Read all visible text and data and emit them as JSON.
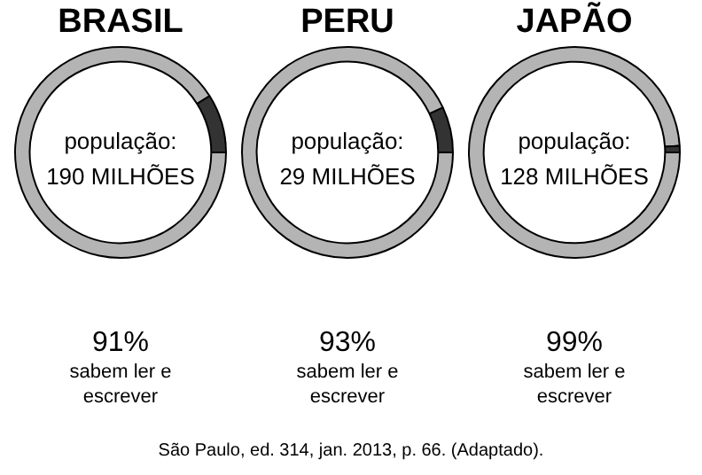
{
  "chart_data": [
    {
      "type": "donut",
      "title": "BRASIL",
      "categories": [
        null,
        null
      ],
      "values": [
        91,
        9
      ],
      "colors": [
        "#b4b4b4",
        "#333333"
      ],
      "value_labels": [
        "91%",
        null
      ],
      "legend": false,
      "annotations": [
        "população:",
        "190 MILHÕES",
        "sabem ler e escrever"
      ]
    },
    {
      "type": "donut",
      "title": "PERU",
      "categories": [
        null,
        null
      ],
      "values": [
        93,
        7
      ],
      "colors": [
        "#b4b4b4",
        "#333333"
      ],
      "value_labels": [
        "93%",
        null
      ],
      "legend": false,
      "annotations": [
        "população:",
        "29 MILHÕES",
        "sabem ler e escrever"
      ]
    },
    {
      "type": "donut",
      "title": "JAPÃO",
      "categories": [
        null,
        null
      ],
      "values": [
        99,
        1
      ],
      "colors": [
        "#b4b4b4",
        "#333333"
      ],
      "value_labels": [
        "99%",
        null
      ],
      "legend": false,
      "annotations": [
        "população:",
        "128 MILHÕES",
        "sabem ler e escrever",
        "São Paulo, ed. 314, jan. 2013, p. 66. (Adaptado)."
      ]
    }
  ]
}
